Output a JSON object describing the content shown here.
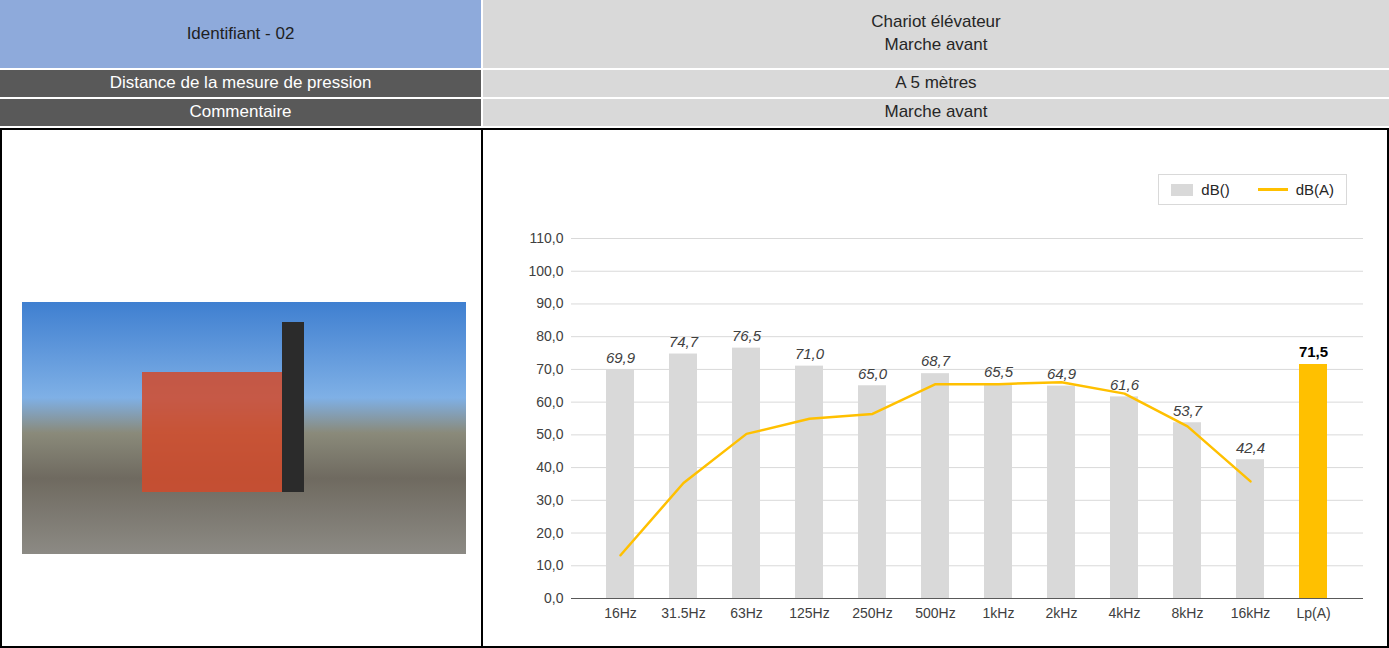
{
  "header": {
    "rows": [
      {
        "label": "Identifiant - 02",
        "value": [
          "Chariot élévateur",
          "Marche avant"
        ]
      },
      {
        "label": "Distance de la mesure de pression",
        "value": [
          "A 5 mètres"
        ]
      },
      {
        "label": "Commentaire",
        "value": [
          "Marche avant"
        ]
      }
    ]
  },
  "chart_data": {
    "type": "bar",
    "categories": [
      "16Hz",
      "31.5Hz",
      "63Hz",
      "125Hz",
      "250Hz",
      "500Hz",
      "1kHz",
      "2kHz",
      "4kHz",
      "8kHz",
      "16kHz",
      "Lp(A)"
    ],
    "series": [
      {
        "name": "dB()",
        "type": "bar",
        "colors": [
          "#d9d9d9",
          "#d9d9d9",
          "#d9d9d9",
          "#d9d9d9",
          "#d9d9d9",
          "#d9d9d9",
          "#d9d9d9",
          "#d9d9d9",
          "#d9d9d9",
          "#d9d9d9",
          "#d9d9d9",
          "#ffc000"
        ],
        "values": [
          69.9,
          74.7,
          76.5,
          71.0,
          65.0,
          68.7,
          65.5,
          64.9,
          61.6,
          53.7,
          42.4,
          71.5
        ],
        "value_labels": [
          "69,9",
          "74,7",
          "76,5",
          "71,0",
          "65,0",
          "68,7",
          "65,5",
          "64,9",
          "61,6",
          "53,7",
          "42,4",
          "71,5"
        ]
      },
      {
        "name": "dB(A)",
        "type": "line",
        "color": "#ffc000",
        "values": [
          13.2,
          35.3,
          50.3,
          54.9,
          56.4,
          65.5,
          65.5,
          66.1,
          62.6,
          52.6,
          35.8,
          null
        ]
      }
    ],
    "ylim": [
      0,
      110
    ],
    "yticks": [
      {
        "value": 0,
        "label": "0,0"
      },
      {
        "value": 10,
        "label": "10,0"
      },
      {
        "value": 20,
        "label": "20,0"
      },
      {
        "value": 30,
        "label": "30,0"
      },
      {
        "value": 40,
        "label": "40,0"
      },
      {
        "value": 50,
        "label": "50,0"
      },
      {
        "value": 60,
        "label": "60,0"
      },
      {
        "value": 70,
        "label": "70,0"
      },
      {
        "value": 80,
        "label": "80,0"
      },
      {
        "value": 90,
        "label": "90,0"
      },
      {
        "value": 100,
        "label": "100,0"
      },
      {
        "value": 110,
        "label": "110,0"
      }
    ],
    "grid": true,
    "data_labels": true,
    "legend": "top-right"
  }
}
